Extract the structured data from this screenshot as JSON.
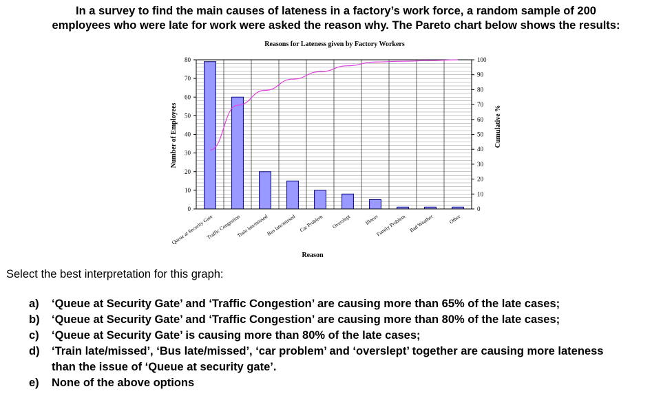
{
  "intro": {
    "line1": "In a survey to find the main causes of lateness in a factory’s work force, a random sample of 200",
    "line2": "employees who were late for work were asked the reason why. The Pareto chart below shows the results:"
  },
  "chart_data": {
    "type": "bar",
    "title": "Reasons for Lateness given by Factory Workers",
    "xlabel": "Reason",
    "ylabel": "Number of Employees",
    "y2label": "Cumulative %",
    "categories": [
      "Queue at Security Gate",
      "Traffic Congestion",
      "Train late/missed",
      "Bus late/missed",
      "Car Problem",
      "Overslept",
      "Illness",
      "Family Problem",
      "Bad Weather",
      "Other"
    ],
    "series": [
      {
        "values": [
          79,
          60,
          20,
          15,
          10,
          8,
          5,
          1,
          1,
          1
        ],
        "axis": "left",
        "kind": "bar"
      },
      {
        "values": [
          39.5,
          69.5,
          79.5,
          87,
          92,
          96,
          98.5,
          99,
          99.5,
          100
        ],
        "axis": "right",
        "kind": "line"
      }
    ],
    "ylim": [
      0,
      80
    ],
    "y2lim": [
      0,
      100
    ],
    "yticks": [
      "0",
      "10",
      "20",
      "30",
      "40",
      "50",
      "60",
      "70",
      "80"
    ],
    "y2ticks": [
      "0",
      "10",
      "20",
      "30",
      "40",
      "50",
      "60",
      "70",
      "80",
      "90",
      "100"
    ],
    "grid": true,
    "colors": {
      "bar": "#9999ff",
      "bar_edge": "#000080",
      "line": "#e040e0",
      "grid": "#000000"
    }
  },
  "question": {
    "prompt": "Select the best interpretation for this graph:",
    "options": [
      {
        "letter": "a)",
        "text": "‘Queue at Security Gate’ and ‘Traffic Congestion’ are causing more than 65% of the late cases;"
      },
      {
        "letter": "b)",
        "text": "‘Queue at Security Gate’ and ‘Traffic Congestion’ are causing more than 80% of the late cases;"
      },
      {
        "letter": "c)",
        "text": "‘Queue at Security Gate’ is causing more than 80% of the late cases;"
      },
      {
        "letter": "d)",
        "text": "‘Train late/missed’, ‘Bus late/missed’, ‘car problem’ and ‘overslept’ together are causing more lateness than the issue of ‘Queue at security gate’."
      },
      {
        "letter": "e)",
        "text": "None of the above options"
      }
    ]
  }
}
